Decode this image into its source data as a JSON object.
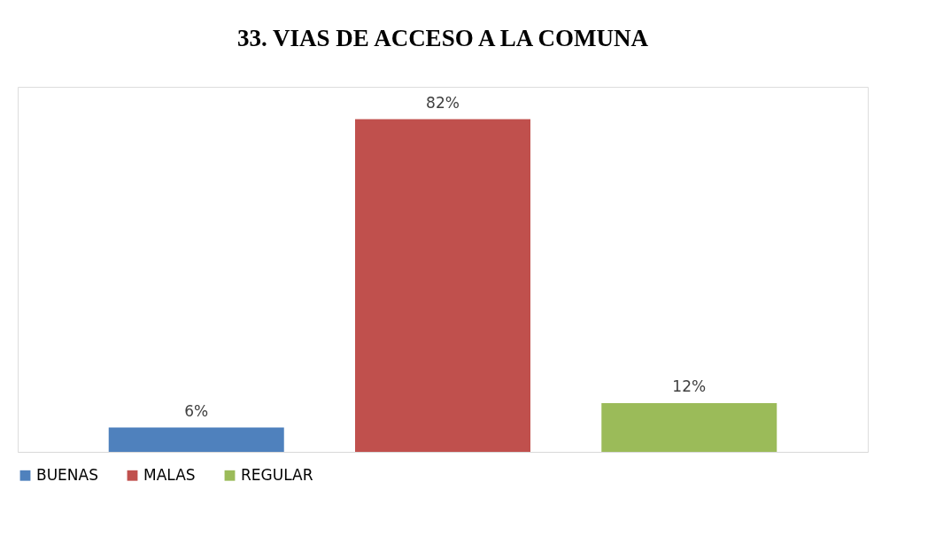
{
  "chart_data": {
    "type": "bar",
    "title": "33. VIAS DE ACCESO A LA COMUNA",
    "categories": [
      null
    ],
    "legend": "bottom",
    "grid": false,
    "tick_labels": false,
    "series": [
      {
        "name": "BUENAS",
        "color": "#4f81bd",
        "values": [
          6
        ],
        "value_labels": [
          "6%"
        ]
      },
      {
        "name": "MALAS",
        "color": "#c0504d",
        "values": [
          82
        ],
        "value_labels": [
          "82%"
        ]
      },
      {
        "name": "REGULAR",
        "color": "#9bbb59",
        "values": [
          12
        ],
        "value_labels": [
          "12%"
        ]
      }
    ]
  }
}
